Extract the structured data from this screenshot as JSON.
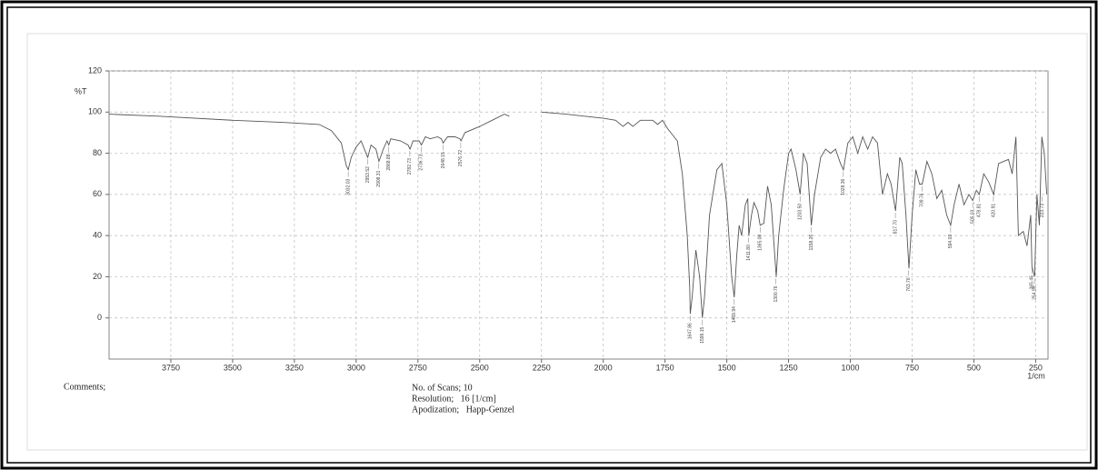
{
  "chart_data": {
    "type": "line",
    "y_label": "%T",
    "x_unit": "1/cm",
    "xlim": [
      4000,
      200
    ],
    "xticks": [
      3750,
      3500,
      3250,
      3000,
      2750,
      2500,
      2250,
      2000,
      1750,
      1500,
      1250,
      1000,
      750,
      500,
      250
    ],
    "ylim": [
      -20,
      120
    ],
    "yticks": [
      120,
      100,
      80,
      60,
      40,
      20,
      0
    ],
    "grid": true,
    "series": [
      {
        "color": "#555555",
        "x": [
          4000,
          3800,
          3500,
          3300,
          3150,
          3100,
          3060,
          3040,
          3032,
          3020,
          3000,
          2980,
          2960,
          2953,
          2940,
          2920,
          2908,
          2890,
          2875,
          2868,
          2860,
          2820,
          2790,
          2782,
          2770,
          2745,
          2736,
          2720,
          2700,
          2670,
          2655,
          2648,
          2630,
          2600,
          2580,
          2576,
          2560,
          2500,
          2450,
          2400,
          2380,
          2330,
          2250,
          2150,
          2000,
          1950,
          1920,
          1900,
          1880,
          1850,
          1800,
          1780,
          1760,
          1740,
          1700,
          1680,
          1660,
          1650,
          1648,
          1640,
          1625,
          1610,
          1599,
          1590,
          1570,
          1540,
          1520,
          1500,
          1480,
          1470,
          1460,
          1450,
          1440,
          1425,
          1415,
          1411,
          1400,
          1390,
          1375,
          1365,
          1350,
          1335,
          1320,
          1300,
          1290,
          1270,
          1250,
          1240,
          1220,
          1210,
          1203,
          1190,
          1175,
          1158,
          1145,
          1120,
          1100,
          1080,
          1060,
          1040,
          1028,
          1010,
          990,
          970,
          950,
          930,
          910,
          890,
          870,
          850,
          835,
          817,
          800,
          790,
          775,
          763,
          750,
          735,
          720,
          709,
          690,
          670,
          650,
          630,
          610,
          594,
          580,
          560,
          540,
          520,
          505,
          490,
          478,
          460,
          440,
          420,
          400,
          380,
          360,
          345,
          330,
          320,
          300,
          285,
          270,
          265,
          254,
          245,
          235,
          225,
          215,
          205
        ],
        "values": [
          99,
          98,
          96,
          95,
          94,
          91,
          85,
          74,
          72,
          78,
          83,
          86,
          80,
          78,
          84,
          82,
          76,
          82,
          86,
          84,
          87,
          86,
          84,
          82,
          86,
          86,
          84,
          88,
          87,
          88,
          87,
          85,
          88,
          88,
          87,
          86,
          90,
          93,
          96,
          99,
          98,
          null,
          100,
          99,
          97,
          96,
          93,
          95,
          93,
          96,
          96,
          94,
          96,
          92,
          86,
          70,
          40,
          15,
          2,
          10,
          33,
          20,
          0,
          10,
          50,
          72,
          75,
          55,
          20,
          10,
          30,
          45,
          40,
          55,
          58,
          40,
          50,
          56,
          52,
          45,
          46,
          64,
          55,
          20,
          40,
          62,
          80,
          82,
          72,
          65,
          60,
          80,
          75,
          45,
          60,
          78,
          82,
          80,
          82,
          75,
          72,
          85,
          88,
          80,
          88,
          82,
          88,
          85,
          60,
          70,
          65,
          52,
          78,
          75,
          50,
          24,
          50,
          72,
          65,
          65,
          76,
          70,
          58,
          62,
          50,
          45,
          55,
          65,
          55,
          60,
          57,
          62,
          60,
          70,
          66,
          60,
          75,
          76,
          77,
          70,
          88,
          40,
          42,
          35,
          50,
          25,
          20,
          60,
          45,
          88,
          80,
          60
        ]
      }
    ],
    "peaks": {
      "x": [
        3032.03,
        2953.52,
        2908.31,
        2868.88,
        2782.73,
        2736.73,
        2648.15,
        2576.72,
        1647.86,
        1599.15,
        1469.94,
        1411.8,
        1365.08,
        1300.76,
        1203.5,
        1158.26,
        1028.36,
        817.7,
        763.76,
        709.76,
        594.03,
        505.03,
        478.81,
        420.91,
        265.45,
        254.59,
        223.73
      ],
      "y": [
        72,
        78,
        76,
        84,
        82,
        84,
        85,
        86,
        2,
        0,
        10,
        40,
        45,
        20,
        60,
        45,
        72,
        52,
        24,
        65,
        45,
        57,
        60,
        60,
        25,
        20,
        60
      ],
      "labels": [
        "3032.03",
        "2953.52",
        "2908.31",
        "2868.88",
        "2782.73",
        "2736.73",
        "2648.15",
        "2576.72",
        "1647.86",
        "1599.15",
        "1469.94",
        "1411.80",
        "1365.08",
        "1300.76",
        "1203.50",
        "1158.26",
        "1028.36",
        "817.70",
        "763.76",
        "709.76",
        "594.03",
        "505.03",
        "478.81",
        "420.91",
        "265.45",
        "254.59",
        "223.73"
      ]
    }
  },
  "comments": {
    "title": "Comments;",
    "lines": [
      "No. of Scans; 10",
      "Resolution;   16 [1/cm]",
      "Apodization;   Happ-Genzel"
    ]
  }
}
